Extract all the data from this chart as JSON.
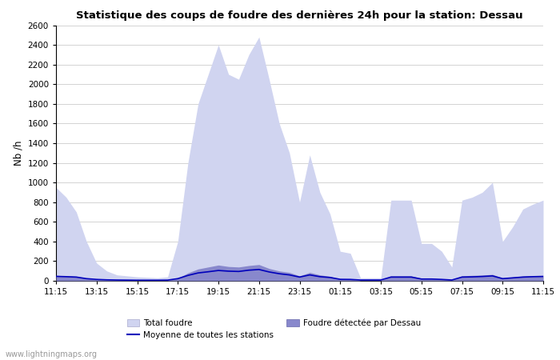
{
  "title": "Statistique des coups de foudre des dernières 24h pour la station: Dessau",
  "ylabel": "Nb /h",
  "ylim": [
    0,
    2600
  ],
  "yticks": [
    0,
    200,
    400,
    600,
    800,
    1000,
    1200,
    1400,
    1600,
    1800,
    2000,
    2200,
    2400,
    2600
  ],
  "xtick_labels": [
    "11:15",
    "13:15",
    "15:15",
    "17:15",
    "19:15",
    "21:15",
    "23:15",
    "01:15",
    "03:15",
    "05:15",
    "07:15",
    "09:15",
    "11:15"
  ],
  "background_color": "#ffffff",
  "grid_color": "#cccccc",
  "total_foudre_color": "#d0d4f0",
  "dessau_color": "#8888cc",
  "moyenne_color": "#0000bb",
  "watermark": "www.lightningmaps.org",
  "legend_total": "Total foudre",
  "legend_moyenne": "Moyenne de toutes les stations",
  "legend_dessau": "Foudre détectée par Dessau",
  "total_foudre": [
    950,
    850,
    700,
    400,
    180,
    100,
    60,
    50,
    40,
    35,
    30,
    40,
    400,
    1200,
    1800,
    2100,
    2400,
    2100,
    2050,
    2300,
    2480,
    2050,
    1600,
    1300,
    800,
    1280,
    900,
    680,
    300,
    280,
    30,
    30,
    30,
    820,
    820,
    820,
    380,
    380,
    300,
    140,
    820,
    850,
    900,
    1000,
    400,
    550,
    730,
    780,
    820
  ],
  "dessau": [
    55,
    50,
    45,
    25,
    12,
    8,
    5,
    4,
    3,
    3,
    3,
    3,
    25,
    80,
    120,
    140,
    160,
    145,
    140,
    155,
    165,
    125,
    100,
    85,
    50,
    85,
    60,
    45,
    18,
    16,
    2,
    2,
    2,
    50,
    50,
    50,
    25,
    25,
    18,
    9,
    50,
    55,
    58,
    65,
    28,
    38,
    48,
    52,
    55
  ],
  "moyenne": [
    45,
    42,
    38,
    22,
    14,
    10,
    8,
    7,
    6,
    6,
    6,
    7,
    22,
    55,
    80,
    92,
    105,
    98,
    95,
    108,
    115,
    90,
    72,
    60,
    38,
    60,
    42,
    34,
    15,
    14,
    8,
    8,
    8,
    38,
    38,
    38,
    18,
    18,
    14,
    8,
    38,
    40,
    44,
    50,
    22,
    30,
    38,
    42,
    44
  ]
}
